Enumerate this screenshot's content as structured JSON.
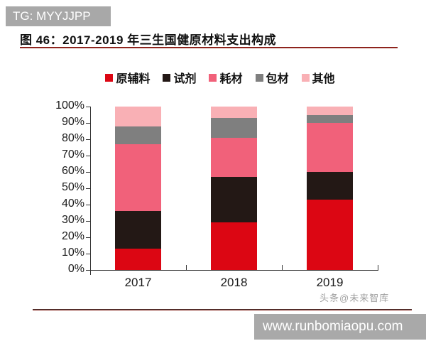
{
  "badges": {
    "top_left": "TG: MYYJJPP",
    "bottom_right": "www.runbomiaopu.com"
  },
  "figure": {
    "title": "图 46：2017-2019 年三生国健原材料支出构成"
  },
  "watermark": "头条@未来智库",
  "chart_data": {
    "type": "bar",
    "stacked": true,
    "title": "2017-2019 年三生国健原材料支出构成",
    "categories": [
      "2017",
      "2018",
      "2019"
    ],
    "series": [
      {
        "name": "原辅料",
        "color": "#dc0613",
        "values": [
          13,
          29,
          43
        ]
      },
      {
        "name": "试剂",
        "color": "#231815",
        "values": [
          23,
          28,
          17
        ]
      },
      {
        "name": "耗材",
        "color": "#f1617a",
        "values": [
          41,
          24,
          30
        ]
      },
      {
        "name": "包材",
        "color": "#7f7f7f",
        "values": [
          11,
          12,
          5
        ]
      },
      {
        "name": "其他",
        "color": "#f9b0b5",
        "values": [
          12,
          7,
          5
        ]
      }
    ],
    "xlabel": "",
    "ylabel": "",
    "ylim": [
      0,
      100
    ],
    "yticks": [
      "100%",
      "90%",
      "80%",
      "70%",
      "60%",
      "50%",
      "40%",
      "30%",
      "20%",
      "10%",
      "0%"
    ],
    "unit": "percent",
    "legend_position": "top",
    "grid": false
  }
}
